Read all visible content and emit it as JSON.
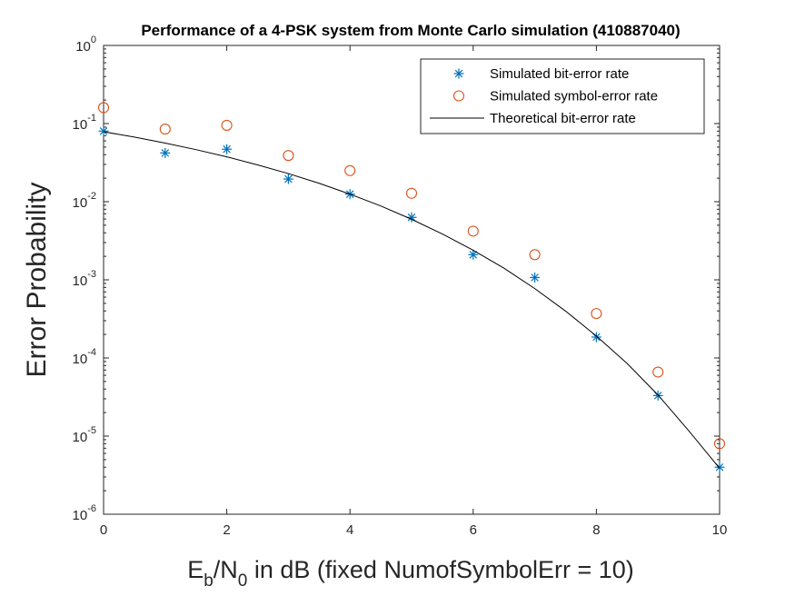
{
  "chart_data": {
    "type": "scatter",
    "title": "Performance of a 4-PSK system from Monte Carlo simulation (410887040)",
    "xlabel": {
      "E": "E",
      "b": "b",
      "slash": "/N",
      "zero": "0",
      "rest": " in dB (fixed NumofSymbolErr = 10)"
    },
    "ylabel": "Error Probability",
    "xlim": [
      0,
      10
    ],
    "ylim": [
      1e-06,
      1
    ],
    "yscale": "log",
    "grid": false,
    "legend_position": "top-right",
    "x_ticks": [
      "0",
      "2",
      "4",
      "6",
      "8",
      "10"
    ],
    "y_ticks": [
      {
        "base": "10",
        "exp": "0"
      },
      {
        "base": "10",
        "exp": "-1"
      },
      {
        "base": "10",
        "exp": "-2"
      },
      {
        "base": "10",
        "exp": "-3"
      },
      {
        "base": "10",
        "exp": "-4"
      },
      {
        "base": "10",
        "exp": "-5"
      },
      {
        "base": "10",
        "exp": "-6"
      }
    ],
    "series": [
      {
        "name": "Simulated bit-error rate",
        "marker": "asterisk",
        "color": "#0072BD",
        "x": [
          0,
          1,
          2,
          3,
          4,
          5,
          6,
          7,
          8,
          9,
          10
        ],
        "y": [
          0.08,
          0.042,
          0.047,
          0.0195,
          0.0125,
          0.0063,
          0.0021,
          0.00107,
          0.000185,
          3.3e-05,
          4e-06
        ]
      },
      {
        "name": "Simulated symbol-error rate",
        "marker": "circle",
        "color": "#D95319",
        "x": [
          0,
          1,
          2,
          3,
          4,
          5,
          6,
          7,
          8,
          9,
          10
        ],
        "y": [
          0.16,
          0.085,
          0.095,
          0.039,
          0.025,
          0.0128,
          0.0042,
          0.0021,
          0.00037,
          6.6e-05,
          8e-06
        ]
      },
      {
        "name": "Theoretical bit-error rate",
        "marker": "line",
        "color": "#000000",
        "x": [
          0,
          0.5,
          1,
          1.5,
          2,
          2.5,
          3,
          3.5,
          4,
          4.5,
          5,
          5.5,
          6,
          6.5,
          7,
          7.5,
          8,
          8.5,
          9,
          9.5,
          10
        ],
        "y": [
          0.0786,
          0.0671,
          0.0563,
          0.0464,
          0.0375,
          0.0296,
          0.0229,
          0.0172,
          0.0125,
          0.00882,
          0.00595,
          0.00386,
          0.00239,
          0.00141,
          0.000773,
          0.000398,
          0.000191,
          8.49e-05,
          3.36e-05,
          1.17e-05,
          3.87e-06
        ]
      }
    ]
  }
}
